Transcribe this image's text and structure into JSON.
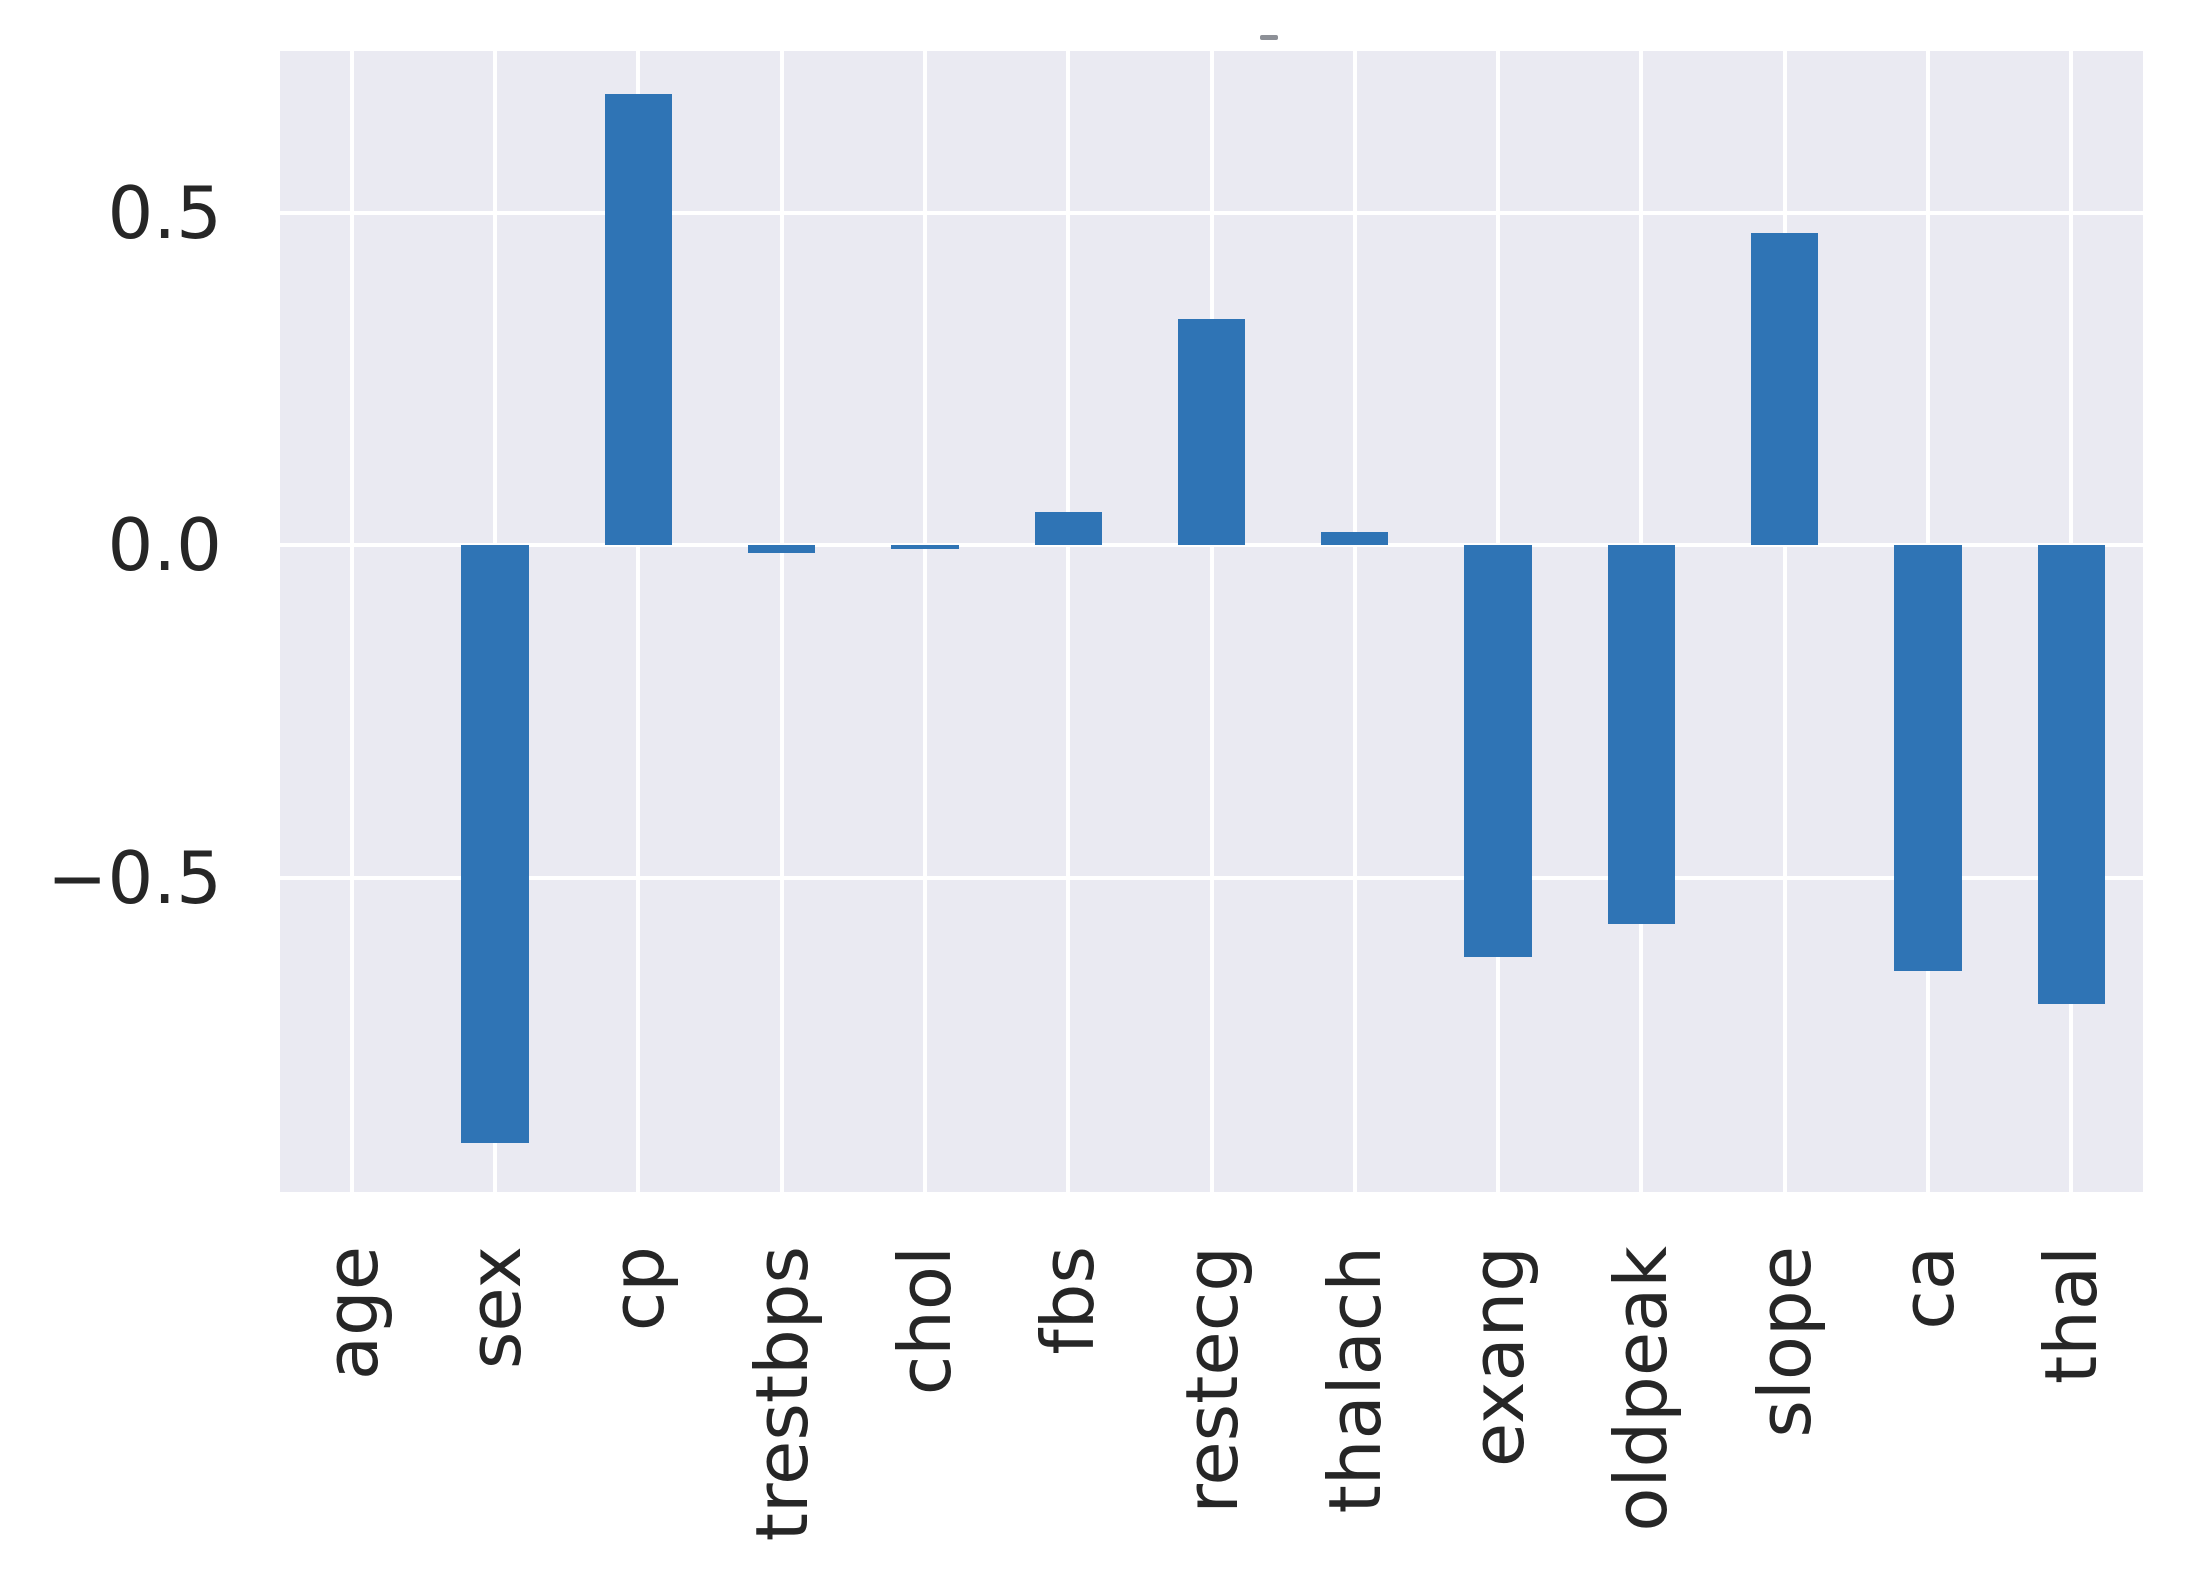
{
  "figure": {
    "background": "#ffffff",
    "top_mark_color": "#8d9097"
  },
  "chart_data": {
    "type": "bar",
    "title": "",
    "xlabel": "",
    "ylabel": "",
    "categories": [
      "age",
      "sex",
      "cp",
      "trestbps",
      "chol",
      "fbs",
      "restecg",
      "thalach",
      "exang",
      "oldpeak",
      "slope",
      "ca",
      "thal"
    ],
    "values": [
      0.0,
      -0.9,
      0.68,
      -0.012,
      -0.005,
      0.05,
      0.34,
      0.02,
      -0.62,
      -0.57,
      0.47,
      -0.64,
      -0.69
    ],
    "yticks": [
      {
        "value": 0.5,
        "label": "0.5"
      },
      {
        "value": 0.0,
        "label": "0.0"
      },
      {
        "value": -0.5,
        "label": "−0.5"
      }
    ],
    "ylim": [
      -0.973,
      0.744
    ],
    "bar_width_fraction": 0.47,
    "bar_color": "#2f74b5",
    "plot_background": "#eaeaf2",
    "gridline_color": "#ffffff",
    "tick_label_color": "#262626",
    "grid": true,
    "legend": false,
    "x_tick_rotation_deg": 90
  }
}
